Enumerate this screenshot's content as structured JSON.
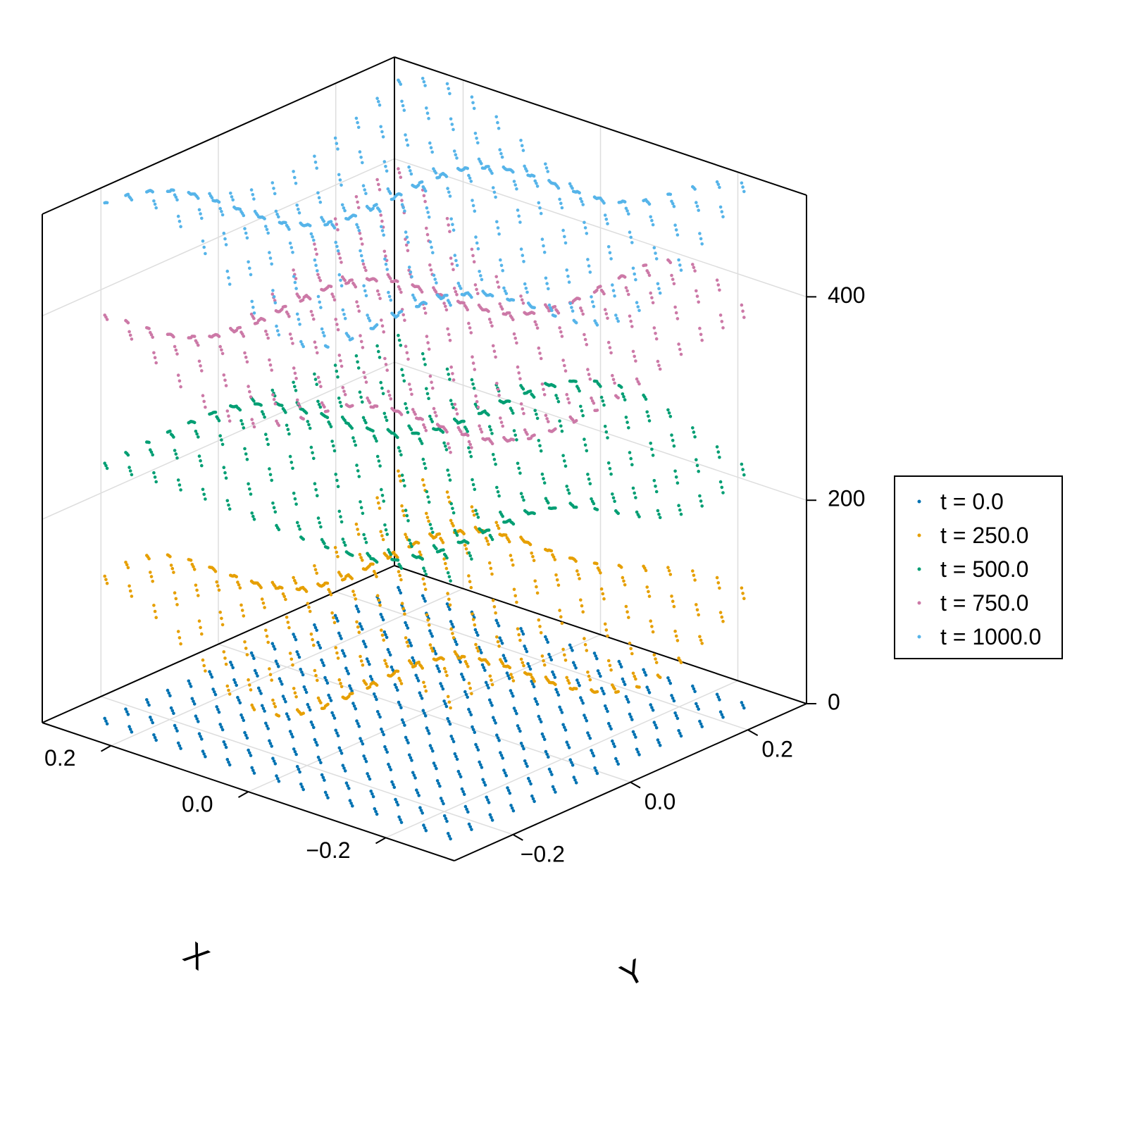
{
  "chart_data": {
    "type": "scatter",
    "projection": "3d",
    "title": "",
    "xlabel": "X",
    "ylabel": "Y",
    "zlabel": "",
    "xlim": [
      -0.3,
      0.3
    ],
    "ylim": [
      -0.3,
      0.3
    ],
    "zlim": [
      0,
      500
    ],
    "grid": true,
    "legend_position": "right",
    "x_ticks": [
      {
        "value": -0.2,
        "label": "−0.2"
      },
      {
        "value": 0.0,
        "label": "0.0"
      },
      {
        "value": 0.2,
        "label": "0.2"
      }
    ],
    "y_ticks": [
      {
        "value": -0.2,
        "label": "−0.2"
      },
      {
        "value": 0.0,
        "label": "0.0"
      },
      {
        "value": 0.2,
        "label": "0.2"
      }
    ],
    "z_ticks": [
      {
        "value": 0,
        "label": "0"
      },
      {
        "value": 200,
        "label": "200"
      },
      {
        "value": 400,
        "label": "400"
      }
    ],
    "point_grid": {
      "x_min": -0.25,
      "x_max": 0.25,
      "y_min": -0.25,
      "y_max": 0.25,
      "steps": 15
    },
    "series": [
      {
        "name": "t = 0.0",
        "color": "#0072b2",
        "z_center": 0,
        "wave_amplitude": 0
      },
      {
        "name": "t = 250.0",
        "color": "#e69f00",
        "z_center": 100,
        "wave_amplitude": 45
      },
      {
        "name": "t = 500.0",
        "color": "#009e73",
        "z_center": 250,
        "wave_amplitude": 40
      },
      {
        "name": "t = 750.0",
        "color": "#cc79a7",
        "z_center": 370,
        "wave_amplitude": 45
      },
      {
        "name": "t = 1000.0",
        "color": "#56b4e9",
        "z_center": 480,
        "wave_amplitude": 45
      }
    ]
  }
}
